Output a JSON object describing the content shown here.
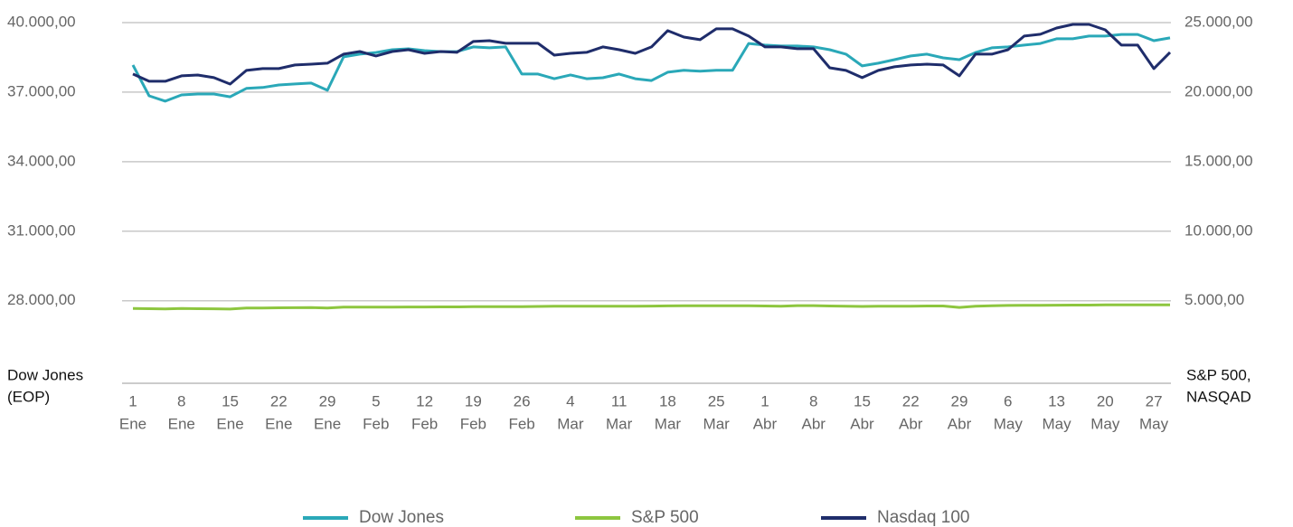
{
  "chart_data": {
    "type": "line",
    "y_label": [
      "Dow Jones",
      "(EOP)"
    ],
    "y2_label": [
      "S&P 500,",
      "NASQAD"
    ],
    "categories": [
      [
        "1",
        "Ene"
      ],
      null,
      null,
      [
        "8",
        "Ene"
      ],
      null,
      null,
      [
        "15",
        "Ene"
      ],
      null,
      null,
      [
        "22",
        "Ene"
      ],
      null,
      null,
      [
        "29",
        "Ene"
      ],
      null,
      null,
      [
        "5",
        "Feb"
      ],
      null,
      null,
      [
        "12",
        "Feb"
      ],
      null,
      null,
      [
        "19",
        "Feb"
      ],
      null,
      null,
      [
        "26",
        "Feb"
      ],
      null,
      null,
      [
        "4",
        "Mar"
      ],
      null,
      null,
      [
        "11",
        "Mar"
      ],
      null,
      null,
      [
        "18",
        "Mar"
      ],
      null,
      null,
      [
        "25",
        "Mar"
      ],
      null,
      null,
      [
        "1",
        "Abr"
      ],
      null,
      null,
      [
        "8",
        "Abr"
      ],
      null,
      null,
      [
        "15",
        "Abr"
      ],
      null,
      null,
      [
        "22",
        "Abr"
      ],
      null,
      null,
      [
        "29",
        "Abr"
      ],
      null,
      null,
      [
        "6",
        "May"
      ],
      null,
      null,
      [
        "13",
        "May"
      ],
      null,
      null,
      [
        "20",
        "May"
      ],
      null,
      null,
      [
        "27",
        "May"
      ],
      null
    ],
    "ylim": [
      24400,
      40000
    ],
    "yticks": [
      {
        "value": 28000,
        "label": "28.000,00"
      },
      {
        "value": 31000,
        "label": "31.000,00"
      },
      {
        "value": 34000,
        "label": "34.000,00"
      },
      {
        "value": 37000,
        "label": "37.000,00"
      },
      {
        "value": 40000,
        "label": "40.000,00"
      }
    ],
    "y2lim": [
      -1000,
      25000
    ],
    "y2ticks": [
      {
        "value": 5000,
        "label": "5.000,00"
      },
      {
        "value": 10000,
        "label": "10.000,00"
      },
      {
        "value": 15000,
        "label": "15.000,00"
      },
      {
        "value": 20000,
        "label": "20.000,00"
      },
      {
        "value": 25000,
        "label": "25.000,00"
      }
    ],
    "grid": true,
    "legend": "bottom",
    "series": [
      {
        "name": "Dow Jones",
        "color": "#2aa8b8",
        "axis": "y",
        "values": [
          38170,
          36840,
          36610,
          36880,
          36920,
          36920,
          36800,
          37160,
          37200,
          37310,
          37350,
          37390,
          37080,
          38520,
          38640,
          38710,
          38830,
          38870,
          38790,
          38750,
          38750,
          38950,
          38910,
          38950,
          37780,
          37780,
          37580,
          37740,
          37580,
          37620,
          37780,
          37580,
          37500,
          37860,
          37940,
          37900,
          37940,
          37940,
          39100,
          39030,
          38990,
          38990,
          38950,
          38830,
          38640,
          38130,
          38250,
          38400,
          38560,
          38640,
          38480,
          38400,
          38710,
          38910,
          38950,
          39030,
          39100,
          39300,
          39300,
          39420,
          39420,
          39490,
          39490,
          39220,
          39340
        ]
      },
      {
        "name": "S&P 500",
        "color": "#8dc63f",
        "axis": "y2",
        "values": [
          4450,
          4430,
          4410,
          4440,
          4430,
          4420,
          4400,
          4470,
          4480,
          4490,
          4500,
          4510,
          4480,
          4540,
          4540,
          4545,
          4545,
          4550,
          4550,
          4555,
          4555,
          4570,
          4570,
          4575,
          4580,
          4590,
          4600,
          4605,
          4605,
          4610,
          4610,
          4600,
          4615,
          4630,
          4640,
          4640,
          4640,
          4645,
          4640,
          4620,
          4600,
          4650,
          4650,
          4620,
          4600,
          4590,
          4610,
          4610,
          4610,
          4620,
          4620,
          4520,
          4600,
          4640,
          4660,
          4670,
          4670,
          4680,
          4690,
          4690,
          4700,
          4700,
          4700,
          4700,
          4700
        ]
      },
      {
        "name": "Nasdaq 100",
        "color": "#1f2d6b",
        "axis": "y2",
        "values": [
          21300,
          20780,
          20780,
          21170,
          21230,
          21040,
          20580,
          21560,
          21690,
          21690,
          21950,
          22010,
          22080,
          22730,
          22920,
          22600,
          22920,
          23050,
          22790,
          22920,
          22860,
          23640,
          23700,
          23510,
          23510,
          23510,
          22660,
          22790,
          22860,
          23250,
          23050,
          22790,
          23250,
          24420,
          23960,
          23770,
          24550,
          24550,
          24030,
          23250,
          23250,
          23120,
          23120,
          21750,
          21560,
          21040,
          21560,
          21820,
          21950,
          22010,
          21950,
          21170,
          22730,
          22730,
          23050,
          24030,
          24160,
          24610,
          24870,
          24870,
          24480,
          23380,
          23380,
          21690,
          22860
        ]
      }
    ]
  }
}
